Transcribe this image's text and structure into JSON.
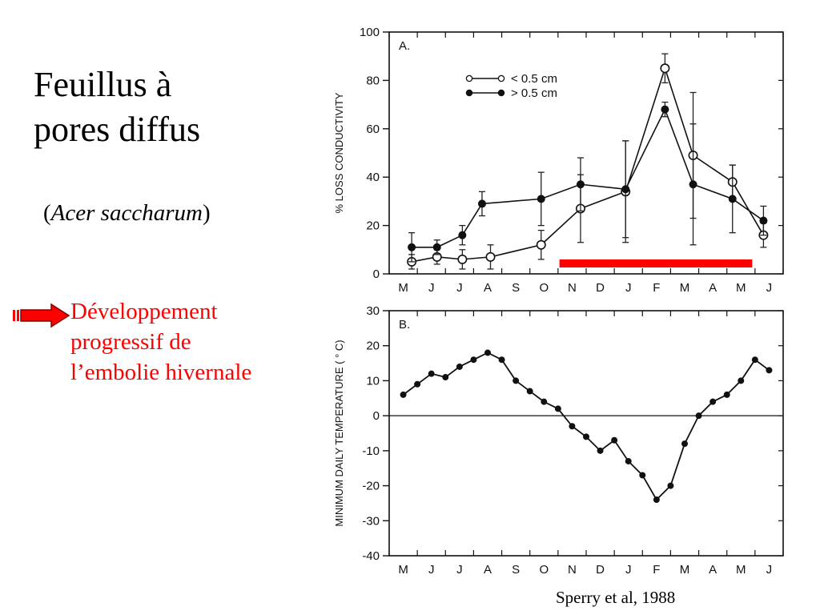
{
  "slide": {
    "title_line1": "Feuillus à",
    "title_line2": "pores diffus",
    "species_open": "(",
    "species_name": "Acer saccharum",
    "species_close": ")",
    "note_line1": "Développement",
    "note_line2": "progressif de",
    "note_line3": "l’embolie hivernale",
    "citation": "Sperry et al, 1988",
    "accent_color": "#ff0000"
  },
  "chart_data": [
    {
      "type": "line",
      "panel_label": "A.",
      "ylabel": "% LOSS CONDUCTIVITY",
      "xlabel": "",
      "categories": [
        "M",
        "J",
        "J",
        "A",
        "S",
        "O",
        "N",
        "D",
        "J",
        "F",
        "M",
        "A",
        "M",
        "J"
      ],
      "yticks": [
        0,
        20,
        40,
        60,
        80,
        100
      ],
      "ylim": [
        0,
        100
      ],
      "legend_position": "top-center",
      "series": [
        {
          "name": "< 0.5 cm",
          "marker": "open-circle",
          "x": [
            0.3,
            1.2,
            2.1,
            3.1,
            4.9,
            6.3,
            7.9,
            9.3,
            10.3,
            11.7,
            12.8
          ],
          "values": [
            5,
            7,
            6,
            7,
            12,
            27,
            34,
            85,
            49,
            38,
            16
          ],
          "err": [
            3,
            3,
            4,
            5,
            6,
            14,
            21,
            6,
            26,
            7,
            5
          ]
        },
        {
          "name": "> 0.5 cm",
          "marker": "filled-circle",
          "x": [
            0.3,
            1.2,
            2.1,
            2.8,
            4.9,
            6.3,
            7.9,
            9.3,
            10.3,
            11.7,
            12.8
          ],
          "values": [
            11,
            11,
            16,
            29,
            31,
            37,
            35,
            68,
            37,
            31,
            22
          ],
          "err": [
            6,
            3,
            4,
            5,
            11,
            11,
            20,
            3,
            25,
            14,
            6
          ]
        }
      ],
      "annotation": {
        "type": "bar",
        "color": "#ff0000",
        "x_start": "N",
        "x_end": "M"
      }
    },
    {
      "type": "line",
      "panel_label": "B.",
      "ylabel": "MINIMUM DAILY TEMPERATURE ( ° C)",
      "xlabel": "",
      "categories": [
        "M",
        "J",
        "J",
        "A",
        "S",
        "O",
        "N",
        "D",
        "J",
        "F",
        "M",
        "A",
        "M",
        "J"
      ],
      "yticks": [
        -40,
        -30,
        -20,
        -10,
        0,
        10,
        20,
        30
      ],
      "ylim": [
        -40,
        30
      ],
      "reference_line": 0,
      "series": [
        {
          "name": "",
          "marker": "filled-circle",
          "x": [
            0,
            0.5,
            1,
            1.5,
            2,
            2.5,
            3,
            3.5,
            4,
            4.5,
            5,
            5.5,
            6,
            6.5,
            7,
            7.5,
            8,
            8.5,
            9,
            9.5,
            10,
            10.5,
            11,
            11.5,
            12,
            12.5,
            13
          ],
          "values": [
            6,
            9,
            12,
            11,
            14,
            16,
            18,
            16,
            10,
            7,
            4,
            2,
            -3,
            -6,
            -10,
            -7,
            -13,
            -17,
            -24,
            -20,
            -8,
            0,
            4,
            6,
            10,
            16,
            13
          ]
        }
      ]
    }
  ]
}
